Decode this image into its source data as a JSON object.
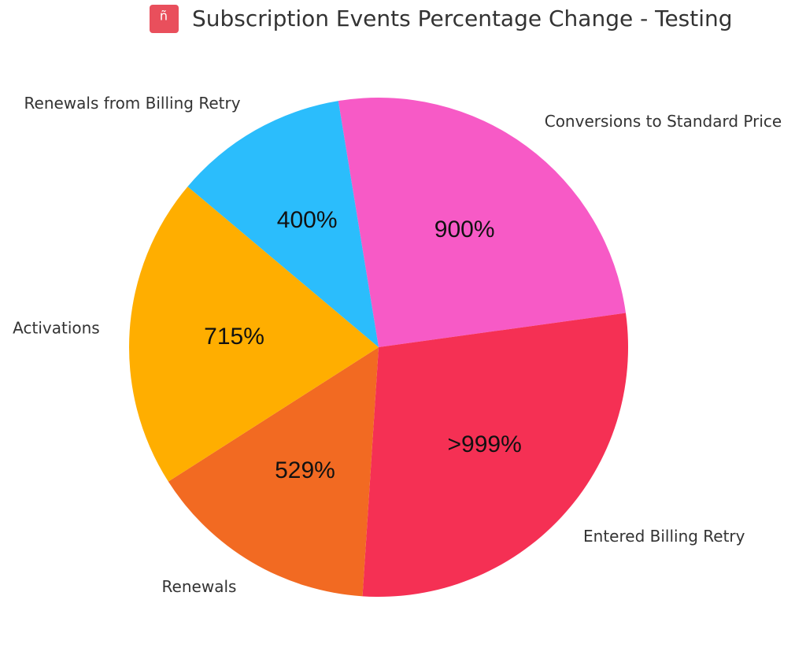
{
  "chart_data": {
    "type": "pie",
    "title": "Subscription Events Percentage Change - Testing",
    "categories": [
      "Conversions to Standard Price",
      "Entered Billing Retry",
      "Renewals",
      "Activations",
      "Renewals from Billing Retry"
    ],
    "values": [
      900,
      1000,
      529,
      715,
      400
    ],
    "value_labels": [
      "900%",
      ">999%",
      "529%",
      "715%",
      "400%"
    ],
    "colors": [
      "#f75ac6",
      "#f53054",
      "#f26a22",
      "#ffae00",
      "#2bbdfc"
    ]
  }
}
